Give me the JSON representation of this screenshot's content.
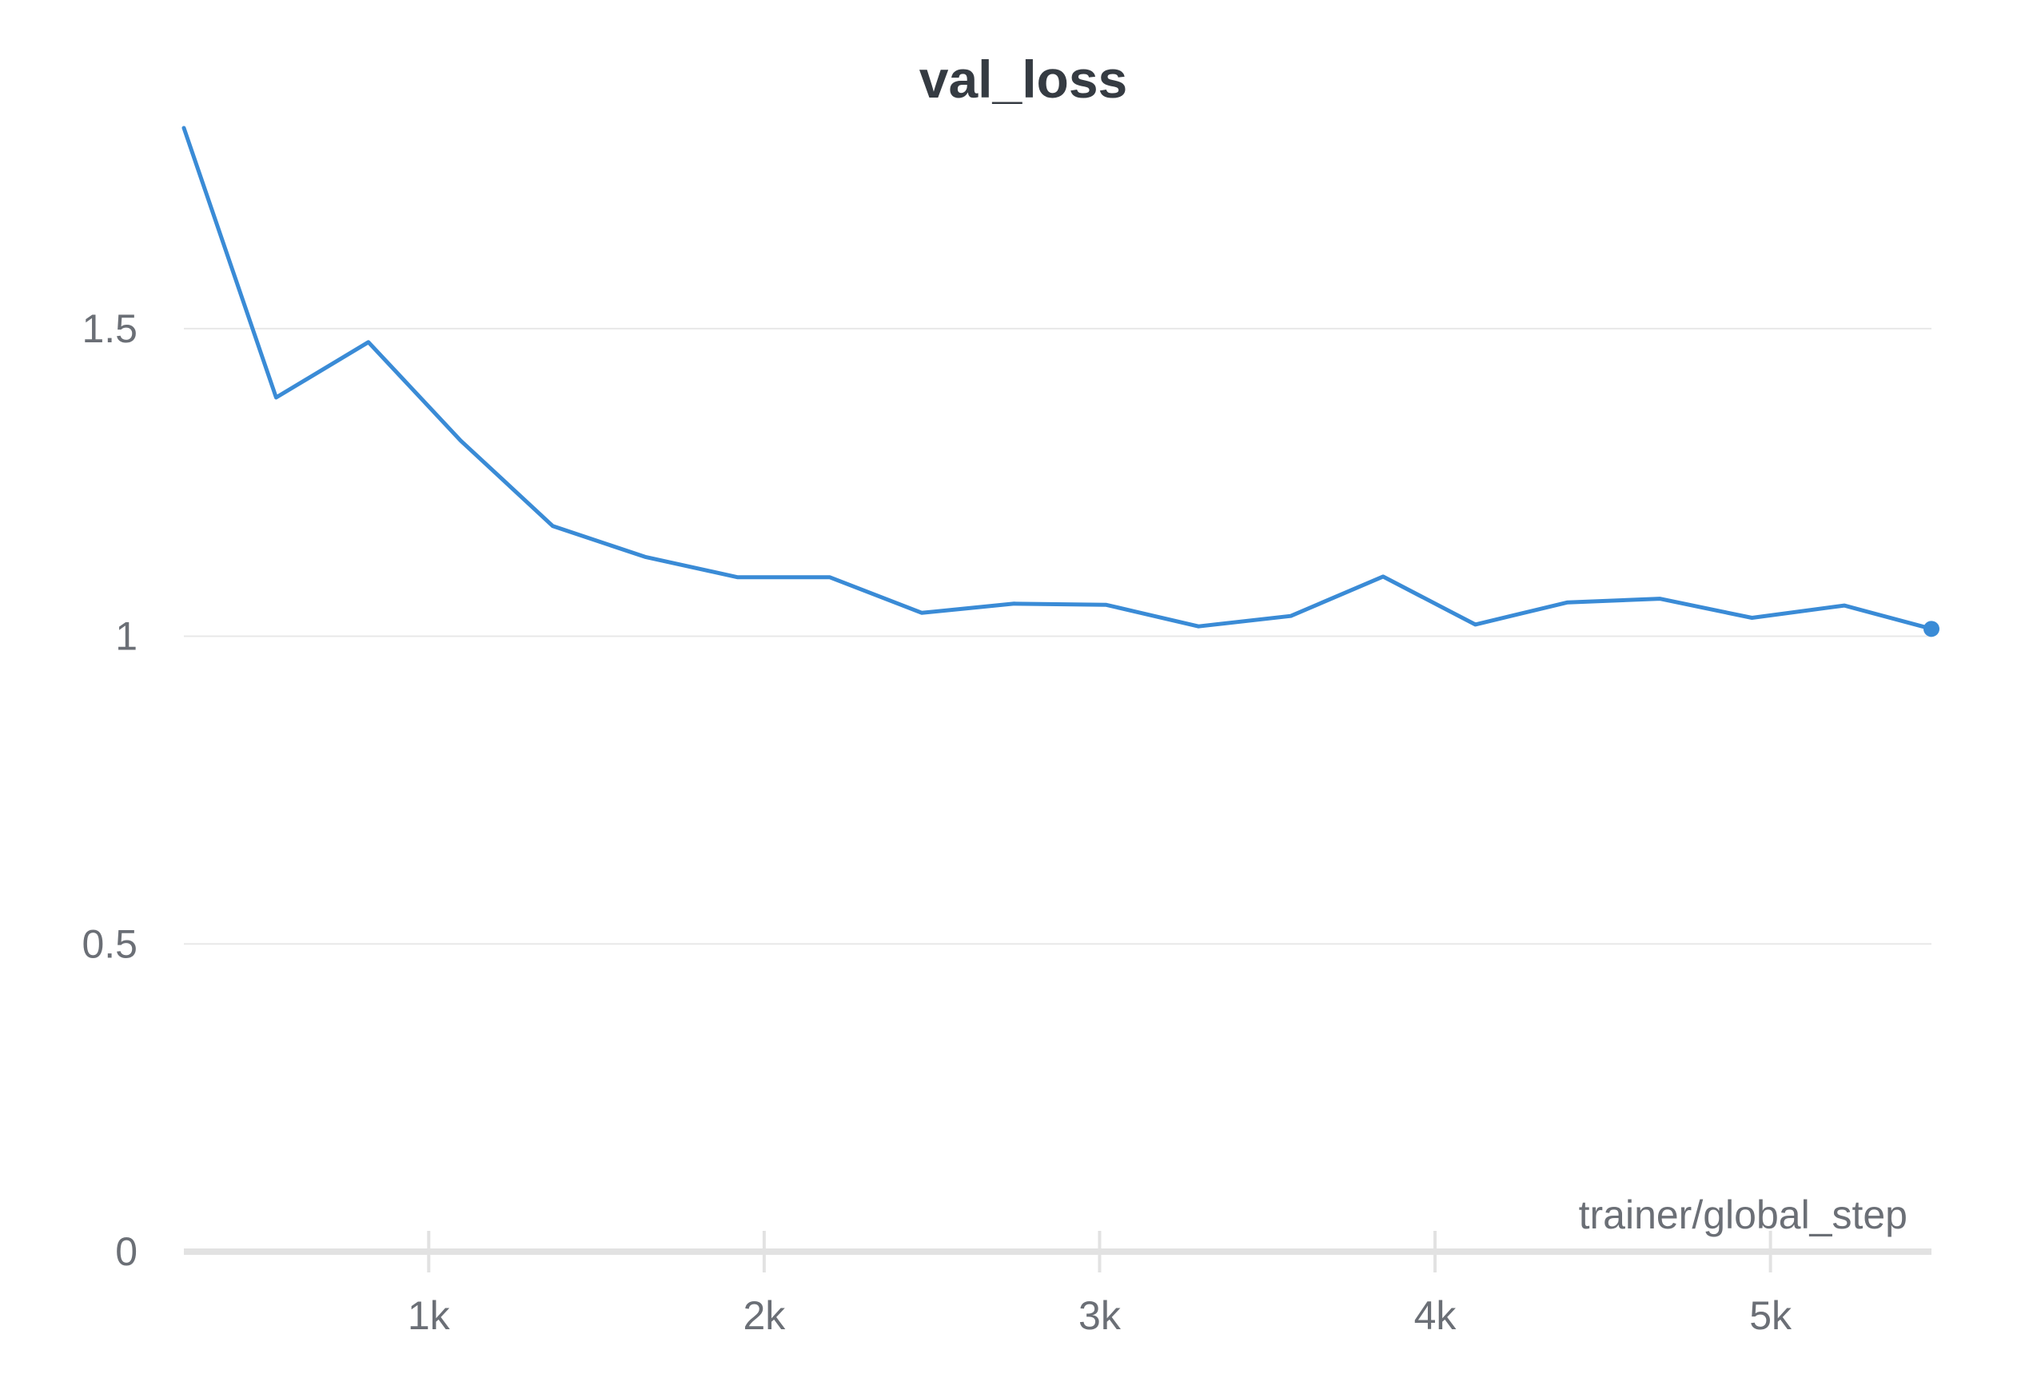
{
  "chart_data": {
    "type": "line",
    "title": "val_loss",
    "xlabel": "trainer/global_step",
    "ylabel": "",
    "xlim": [
      270,
      5480
    ],
    "ylim": [
      0,
      1.8
    ],
    "grid": true,
    "x_ticks": [
      1000,
      2000,
      3000,
      4000,
      5000
    ],
    "x_tick_labels": [
      "1k",
      "2k",
      "3k",
      "4k",
      "5k"
    ],
    "y_ticks": [
      0,
      0.5,
      1,
      1.5
    ],
    "y_tick_labels": [
      "0",
      "0.5",
      "1",
      "1.5"
    ],
    "colors": {
      "line": "#3a8bd6",
      "grid": "#e8e8e8",
      "axis": "#e2e2e2"
    },
    "series": [
      {
        "values": [
          [
            270,
            1.826
          ],
          [
            545,
            1.388
          ],
          [
            820,
            1.478
          ],
          [
            1095,
            1.318
          ],
          [
            1370,
            1.179
          ],
          [
            1645,
            1.129
          ],
          [
            1920,
            1.096
          ],
          [
            2195,
            1.096
          ],
          [
            2470,
            1.038
          ],
          [
            2745,
            1.053
          ],
          [
            3020,
            1.051
          ],
          [
            3295,
            1.016
          ],
          [
            3570,
            1.033
          ],
          [
            3845,
            1.097
          ],
          [
            4120,
            1.019
          ],
          [
            4395,
            1.055
          ],
          [
            4670,
            1.061
          ],
          [
            4945,
            1.03
          ],
          [
            5220,
            1.05
          ],
          [
            5480,
            1.012
          ]
        ]
      }
    ]
  }
}
